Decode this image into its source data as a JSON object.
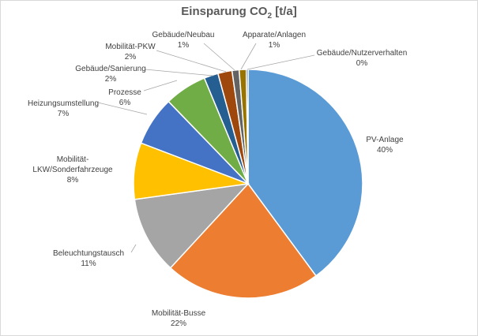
{
  "chart_data": {
    "type": "pie",
    "title_main": "Einsparung CO",
    "title_sub": "2",
    "title_unit": " [t/a]",
    "series": [
      {
        "label_lines": [
          "PV-Anlage"
        ],
        "value_label": "40%",
        "value": 40,
        "color": "#5b9bd5"
      },
      {
        "label_lines": [
          "Mobilität-Busse"
        ],
        "value_label": "22%",
        "value": 22,
        "color": "#ed7d31"
      },
      {
        "label_lines": [
          "Beleuchtungstausch"
        ],
        "value_label": "11%",
        "value": 11,
        "color": "#a5a5a5"
      },
      {
        "label_lines": [
          "Mobilität-",
          "LKW/Sonderfahrzeuge"
        ],
        "value_label": "8%",
        "value": 8,
        "color": "#ffc000"
      },
      {
        "label_lines": [
          "Heizungsumstellung"
        ],
        "value_label": "7%",
        "value": 7,
        "color": "#4472c4"
      },
      {
        "label_lines": [
          "Prozesse"
        ],
        "value_label": "6%",
        "value": 6,
        "color": "#70ad47"
      },
      {
        "label_lines": [
          "Gebäude/Sanierung"
        ],
        "value_label": "2%",
        "value": 2,
        "color": "#255e91"
      },
      {
        "label_lines": [
          "Mobilität-PKW"
        ],
        "value_label": "2%",
        "value": 2,
        "color": "#9e480e"
      },
      {
        "label_lines": [
          "Gebäude/Neubau"
        ],
        "value_label": "1%",
        "value": 1,
        "color": "#636363"
      },
      {
        "label_lines": [
          "Apparate/Anlagen"
        ],
        "value_label": "1%",
        "value": 1,
        "color": "#997300"
      },
      {
        "label_lines": [
          "Gebäude/Nutzerverhalten"
        ],
        "value_label": "0%",
        "value": 0.25,
        "color": "#264478"
      }
    ]
  }
}
